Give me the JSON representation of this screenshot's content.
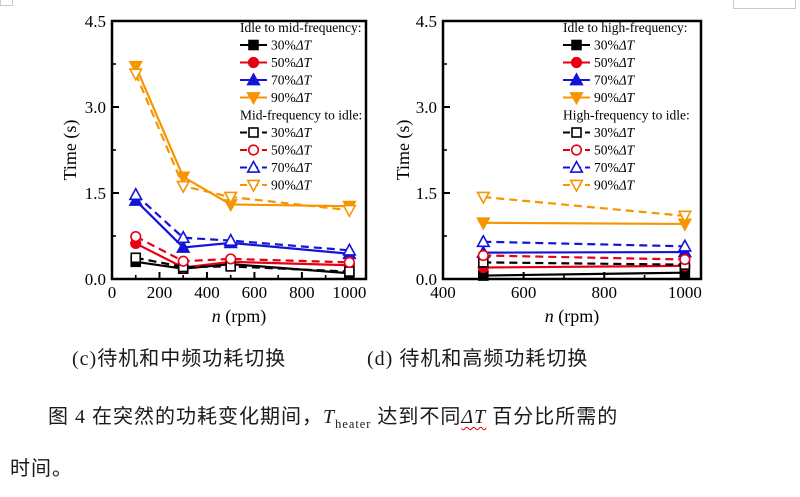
{
  "subcaptions": {
    "c": "(c)待机和中频功耗切换",
    "d": "(d) 待机和高频功耗切换"
  },
  "figure_caption": {
    "prefix": "图 4  在突然的功耗变化期间，",
    "t": "T",
    "t_sub": "heater",
    "mid": " 达到不同",
    "delta": "ΔT",
    "suffix": " 百分比所需的",
    "line2": "时间。"
  },
  "colors": {
    "black": "#000000",
    "red": "#e60012",
    "blue": "#1414d8",
    "orange": "#f79400"
  },
  "chart_data": [
    {
      "type": "line",
      "xlabel_italic": "n",
      "xlabel_rest": " (rpm)",
      "ylabel": "Time (s)",
      "xlim": [
        0,
        1070
      ],
      "ylim": [
        0,
        4.5
      ],
      "xticks": [
        0,
        200,
        400,
        600,
        800,
        1000
      ],
      "xminor": [
        100,
        300,
        500,
        700,
        900
      ],
      "yticks": [
        0,
        1.5,
        3.0,
        4.5
      ],
      "ytick_labels": [
        "0.0",
        "1.5",
        "3.0",
        "4.5"
      ],
      "yminor": [
        0.75,
        2.25,
        3.75
      ],
      "x": [
        100,
        300,
        500,
        1000
      ],
      "legend": [
        {
          "title": "Idle to mid-frequency:",
          "items": [
            0,
            1,
            2,
            3
          ]
        },
        {
          "title": "Mid-frequency to idle:",
          "items": [
            4,
            5,
            6,
            7
          ]
        }
      ],
      "series": [
        {
          "name": "idle-to-mid-30",
          "legend_pct": "30%",
          "legend_sym": "ΔT",
          "color": "#000000",
          "marker": "square",
          "filled": true,
          "dashed": false,
          "values": [
            0.3,
            0.18,
            0.26,
            0.1
          ]
        },
        {
          "name": "idle-to-mid-50",
          "legend_pct": "50%",
          "legend_sym": "ΔT",
          "color": "#e60012",
          "marker": "circle",
          "filled": true,
          "dashed": false,
          "values": [
            0.62,
            0.2,
            0.3,
            0.24
          ]
        },
        {
          "name": "idle-to-mid-70",
          "legend_pct": "70%",
          "legend_sym": "ΔT",
          "color": "#1414d8",
          "marker": "triup",
          "filled": true,
          "dashed": false,
          "values": [
            1.37,
            0.55,
            0.63,
            0.44
          ]
        },
        {
          "name": "idle-to-mid-90",
          "legend_pct": "90%",
          "legend_sym": "ΔT",
          "color": "#f79400",
          "marker": "tridown",
          "filled": true,
          "dashed": false,
          "values": [
            3.71,
            1.78,
            1.3,
            1.27
          ]
        },
        {
          "name": "mid-to-idle-30",
          "legend_pct": "30%",
          "legend_sym": "ΔT",
          "color": "#000000",
          "marker": "square",
          "filled": false,
          "dashed": true,
          "values": [
            0.37,
            0.21,
            0.22,
            0.13
          ]
        },
        {
          "name": "mid-to-idle-50",
          "legend_pct": "50%",
          "legend_sym": "ΔT",
          "color": "#e60012",
          "marker": "circle",
          "filled": false,
          "dashed": true,
          "values": [
            0.74,
            0.31,
            0.35,
            0.29
          ]
        },
        {
          "name": "mid-to-idle-70",
          "legend_pct": "70%",
          "legend_sym": "ΔT",
          "color": "#1414d8",
          "marker": "triup",
          "filled": false,
          "dashed": true,
          "values": [
            1.47,
            0.72,
            0.67,
            0.5
          ]
        },
        {
          "name": "mid-to-idle-90",
          "legend_pct": "90%",
          "legend_sym": "ΔT",
          "color": "#f79400",
          "marker": "tridown",
          "filled": false,
          "dashed": true,
          "values": [
            3.58,
            1.62,
            1.43,
            1.2
          ]
        }
      ]
    },
    {
      "type": "line",
      "xlabel_italic": "n",
      "xlabel_rest": " (rpm)",
      "ylabel": "Time (s)",
      "xlim": [
        400,
        1040
      ],
      "ylim": [
        0,
        4.5
      ],
      "xticks": [
        400,
        600,
        800,
        1000
      ],
      "xminor": [
        500,
        700,
        900
      ],
      "yticks": [
        0,
        1.5,
        3.0,
        4.5
      ],
      "ytick_labels": [
        "0.0",
        "1.5",
        "3.0",
        "4.5"
      ],
      "yminor": [
        0.75,
        2.25,
        3.75
      ],
      "x": [
        500,
        1000
      ],
      "legend": [
        {
          "title": "Idle to high-frequency:",
          "items": [
            0,
            1,
            2,
            3
          ]
        },
        {
          "title": "High-frequency to idle:",
          "items": [
            4,
            5,
            6,
            7
          ]
        }
      ],
      "series": [
        {
          "name": "idle-to-high-30",
          "legend_pct": "30%",
          "legend_sym": "ΔT",
          "color": "#000000",
          "marker": "square",
          "filled": true,
          "dashed": false,
          "values": [
            0.06,
            0.11
          ]
        },
        {
          "name": "idle-to-high-50",
          "legend_pct": "50%",
          "legend_sym": "ΔT",
          "color": "#e60012",
          "marker": "circle",
          "filled": true,
          "dashed": false,
          "values": [
            0.2,
            0.23
          ]
        },
        {
          "name": "idle-to-high-70",
          "legend_pct": "70%",
          "legend_sym": "ΔT",
          "color": "#1414d8",
          "marker": "triup",
          "filled": true,
          "dashed": false,
          "values": [
            0.46,
            0.47
          ]
        },
        {
          "name": "idle-to-high-90",
          "legend_pct": "90%",
          "legend_sym": "ΔT",
          "color": "#f79400",
          "marker": "tridown",
          "filled": true,
          "dashed": false,
          "values": [
            0.98,
            0.96
          ]
        },
        {
          "name": "high-to-idle-30",
          "legend_pct": "30%",
          "legend_sym": "ΔT",
          "color": "#000000",
          "marker": "square",
          "filled": false,
          "dashed": true,
          "values": [
            0.29,
            0.25
          ]
        },
        {
          "name": "high-to-idle-50",
          "legend_pct": "50%",
          "legend_sym": "ΔT",
          "color": "#e60012",
          "marker": "circle",
          "filled": false,
          "dashed": true,
          "values": [
            0.41,
            0.34
          ]
        },
        {
          "name": "high-to-idle-70",
          "legend_pct": "70%",
          "legend_sym": "ΔT",
          "color": "#1414d8",
          "marker": "triup",
          "filled": false,
          "dashed": true,
          "values": [
            0.65,
            0.57
          ]
        },
        {
          "name": "high-to-idle-90",
          "legend_pct": "90%",
          "legend_sym": "ΔT",
          "color": "#f79400",
          "marker": "tridown",
          "filled": false,
          "dashed": true,
          "values": [
            1.43,
            1.1
          ]
        }
      ]
    }
  ]
}
